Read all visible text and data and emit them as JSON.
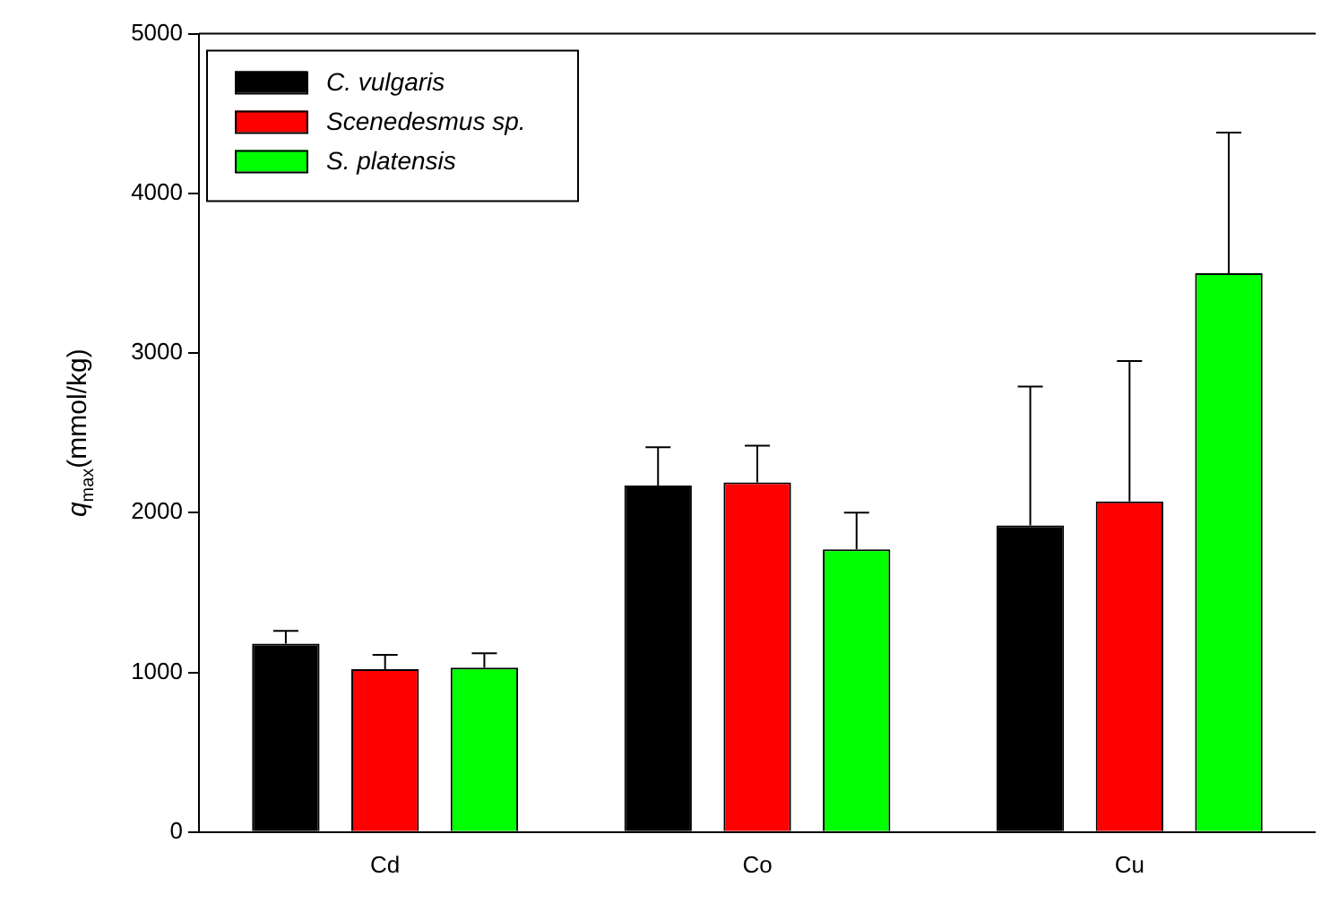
{
  "chart_data": {
    "type": "bar",
    "ylabel": "q$_{max}$(mmol/kg)",
    "categories": [
      "Cd",
      "Co",
      "Cu"
    ],
    "series": [
      {
        "name": "C. vulgaris",
        "color": "#000000",
        "values": [
          1180,
          2170,
          1920
        ],
        "errors": [
          [
            1180,
            1260
          ],
          [
            2170,
            2410
          ],
          [
            1920,
            2790
          ]
        ]
      },
      {
        "name": "Scenedesmus sp.",
        "color": "#ff0000",
        "values": [
          1020,
          2190,
          2070
        ],
        "errors": [
          [
            1020,
            1110
          ],
          [
            2190,
            2420
          ],
          [
            2070,
            2950
          ]
        ]
      },
      {
        "name": "S. platensis",
        "color": "#00ff00",
        "values": [
          1030,
          1770,
          3500
        ],
        "errors": [
          [
            1030,
            1120
          ],
          [
            1770,
            2000
          ],
          [
            3500,
            4380
          ]
        ]
      }
    ],
    "ylim": [
      0,
      5000
    ],
    "yticks": [
      0,
      1000,
      2000,
      3000,
      4000,
      5000
    ],
    "grid": false,
    "legend": "top left"
  }
}
